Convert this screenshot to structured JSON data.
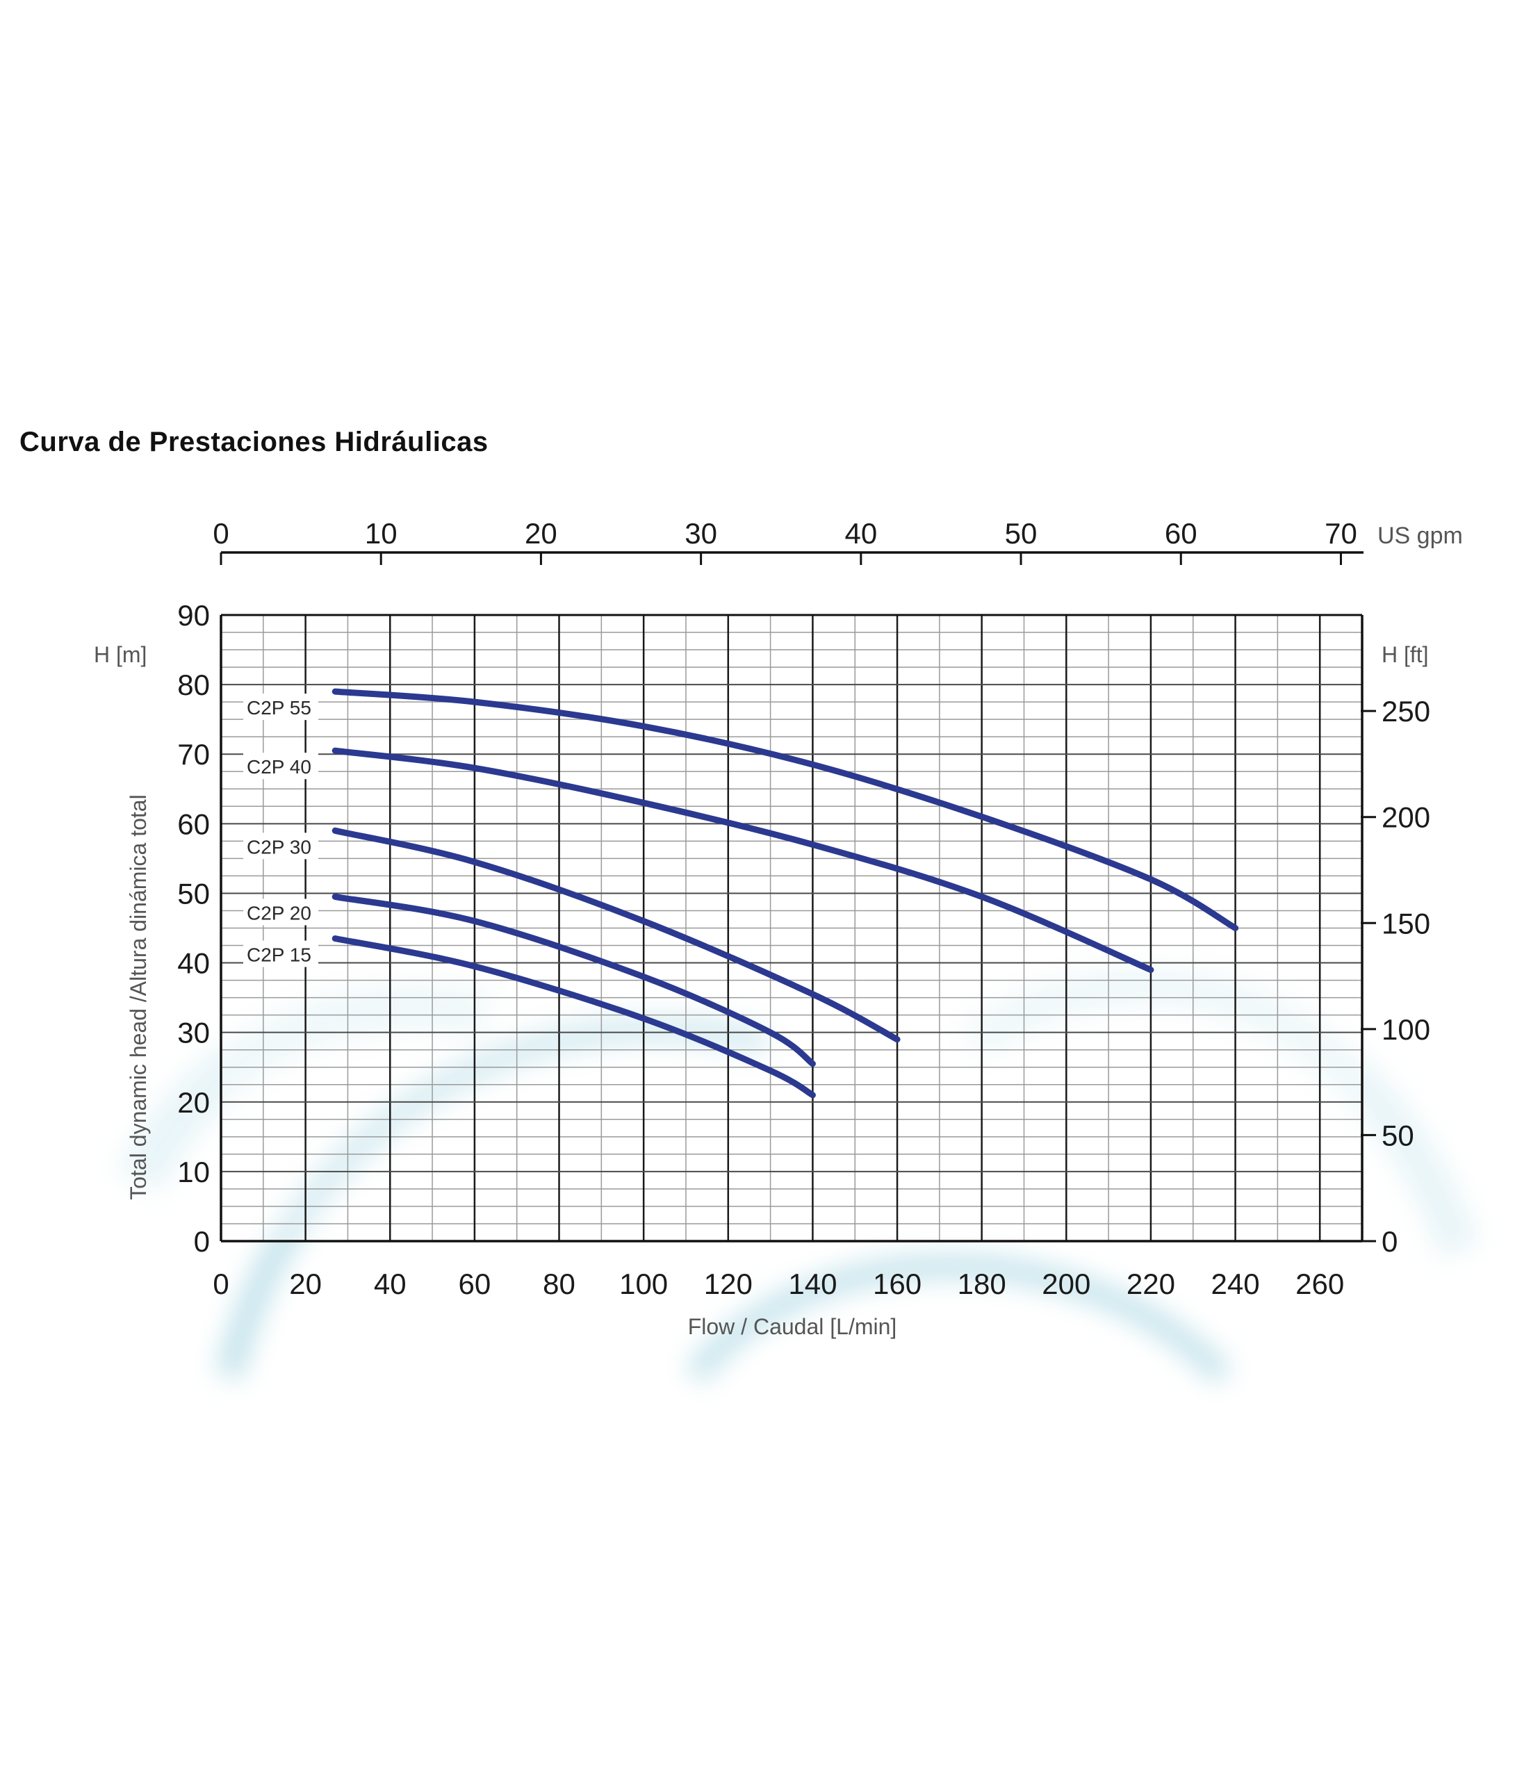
{
  "title": "Curva de Prestaciones Hidráulicas",
  "chart_data": {
    "type": "line",
    "title": "Curva de Prestaciones Hidráulicas",
    "xlabel": "Flow / Caudal [L/min]",
    "ylabel": "Total dynamic head /Altura dinámica total",
    "y_unit_left": "H [m]",
    "y_unit_right": "H [ft]",
    "top_axis_unit": "US gpm",
    "xlim": [
      0,
      270
    ],
    "ylim": [
      0,
      90
    ],
    "x_ticks": [
      0,
      20,
      40,
      60,
      80,
      100,
      120,
      140,
      160,
      180,
      200,
      220,
      240,
      260
    ],
    "y_ticks": [
      0,
      10,
      20,
      30,
      40,
      50,
      60,
      70,
      80,
      90
    ],
    "top_ticks": [
      0,
      10,
      20,
      30,
      40,
      50,
      60,
      70
    ],
    "right_ticks": [
      0,
      50,
      100,
      150,
      200,
      250
    ],
    "grid": true,
    "line_color": "#2b3990",
    "series": [
      {
        "name": "C2P 55",
        "points": [
          [
            27,
            79
          ],
          [
            60,
            77.5
          ],
          [
            100,
            74
          ],
          [
            140,
            68.5
          ],
          [
            180,
            61
          ],
          [
            220,
            52
          ],
          [
            240,
            45
          ]
        ]
      },
      {
        "name": "C2P 40",
        "points": [
          [
            27,
            70.5
          ],
          [
            60,
            68
          ],
          [
            100,
            63
          ],
          [
            140,
            57
          ],
          [
            180,
            49.5
          ],
          [
            220,
            39
          ]
        ]
      },
      {
        "name": "C2P 30",
        "points": [
          [
            27,
            59
          ],
          [
            60,
            54.5
          ],
          [
            100,
            46
          ],
          [
            140,
            35.5
          ],
          [
            160,
            29
          ]
        ]
      },
      {
        "name": "C2P 20",
        "points": [
          [
            27,
            49.5
          ],
          [
            60,
            46
          ],
          [
            100,
            38
          ],
          [
            130,
            30
          ],
          [
            140,
            25.5
          ]
        ]
      },
      {
        "name": "C2P 15",
        "points": [
          [
            27,
            43.5
          ],
          [
            60,
            39.5
          ],
          [
            100,
            32
          ],
          [
            130,
            24.5
          ],
          [
            140,
            21
          ]
        ]
      }
    ]
  }
}
